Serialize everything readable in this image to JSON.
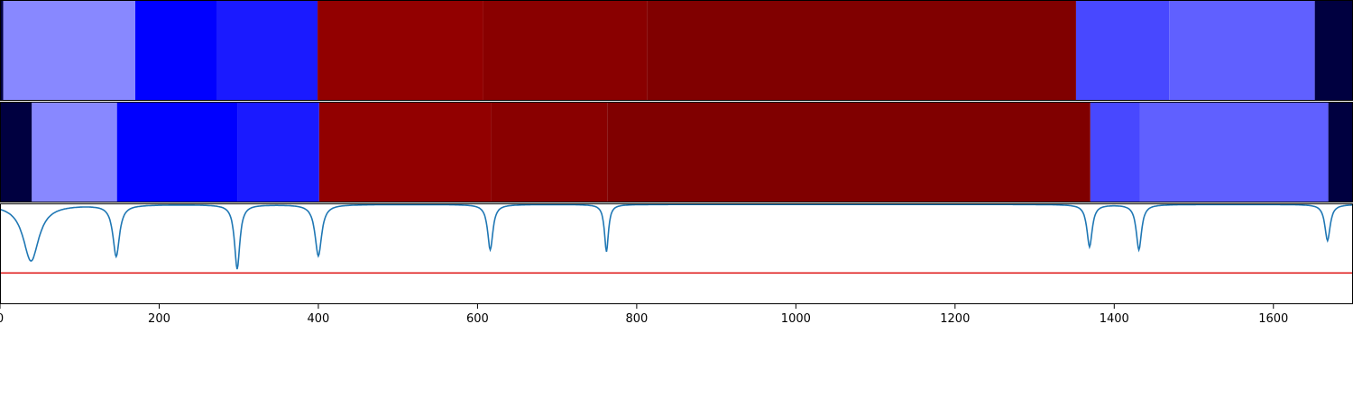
{
  "chart_data": [
    {
      "type": "heatmap",
      "xlim": [
        0,
        1700
      ],
      "segments": [
        {
          "start": 0,
          "end": 4,
          "color": "#000040"
        },
        {
          "start": 4,
          "end": 170,
          "color": "#8888ff"
        },
        {
          "start": 170,
          "end": 273,
          "color": "#0000ff"
        },
        {
          "start": 273,
          "end": 399,
          "color": "#1a1aff"
        },
        {
          "start": 399,
          "end": 607,
          "color": "#920000"
        },
        {
          "start": 607,
          "end": 813,
          "color": "#890000"
        },
        {
          "start": 813,
          "end": 1352,
          "color": "#800000"
        },
        {
          "start": 1352,
          "end": 1469,
          "color": "#4848ff"
        },
        {
          "start": 1469,
          "end": 1652,
          "color": "#6060ff"
        },
        {
          "start": 1652,
          "end": 1700,
          "color": "#000040"
        }
      ]
    },
    {
      "type": "heatmap",
      "xlim": [
        0,
        1700
      ],
      "segments": [
        {
          "start": 0,
          "end": 40,
          "color": "#000040"
        },
        {
          "start": 40,
          "end": 147,
          "color": "#8888ff"
        },
        {
          "start": 147,
          "end": 299,
          "color": "#0000ff"
        },
        {
          "start": 299,
          "end": 401,
          "color": "#1a1aff"
        },
        {
          "start": 401,
          "end": 617,
          "color": "#920000"
        },
        {
          "start": 617,
          "end": 763,
          "color": "#890000"
        },
        {
          "start": 763,
          "end": 1370,
          "color": "#800000"
        },
        {
          "start": 1370,
          "end": 1432,
          "color": "#4848ff"
        },
        {
          "start": 1432,
          "end": 1669,
          "color": "#6060ff"
        },
        {
          "start": 1669,
          "end": 1700,
          "color": "#000040"
        }
      ]
    },
    {
      "type": "line",
      "xlim": [
        0,
        1700
      ],
      "ylim": [
        0,
        1
      ],
      "baseline": 0.99,
      "dips": [
        {
          "x": 39,
          "depth": 0.56,
          "width": 12
        },
        {
          "x": 146,
          "depth": 0.51,
          "width": 5
        },
        {
          "x": 298,
          "depth": 0.64,
          "width": 4
        },
        {
          "x": 400,
          "depth": 0.51,
          "width": 5
        },
        {
          "x": 616,
          "depth": 0.45,
          "width": 4
        },
        {
          "x": 762,
          "depth": 0.47,
          "width": 3
        },
        {
          "x": 1369,
          "depth": 0.42,
          "width": 4
        },
        {
          "x": 1431,
          "depth": 0.45,
          "width": 4
        },
        {
          "x": 1668,
          "depth": 0.36,
          "width": 4
        }
      ],
      "threshold": 0.31,
      "line_color": "#1f77b4",
      "threshold_color": "#e02020",
      "xticks": [
        0,
        200,
        400,
        600,
        800,
        1000,
        1200,
        1400,
        1600
      ]
    }
  ]
}
